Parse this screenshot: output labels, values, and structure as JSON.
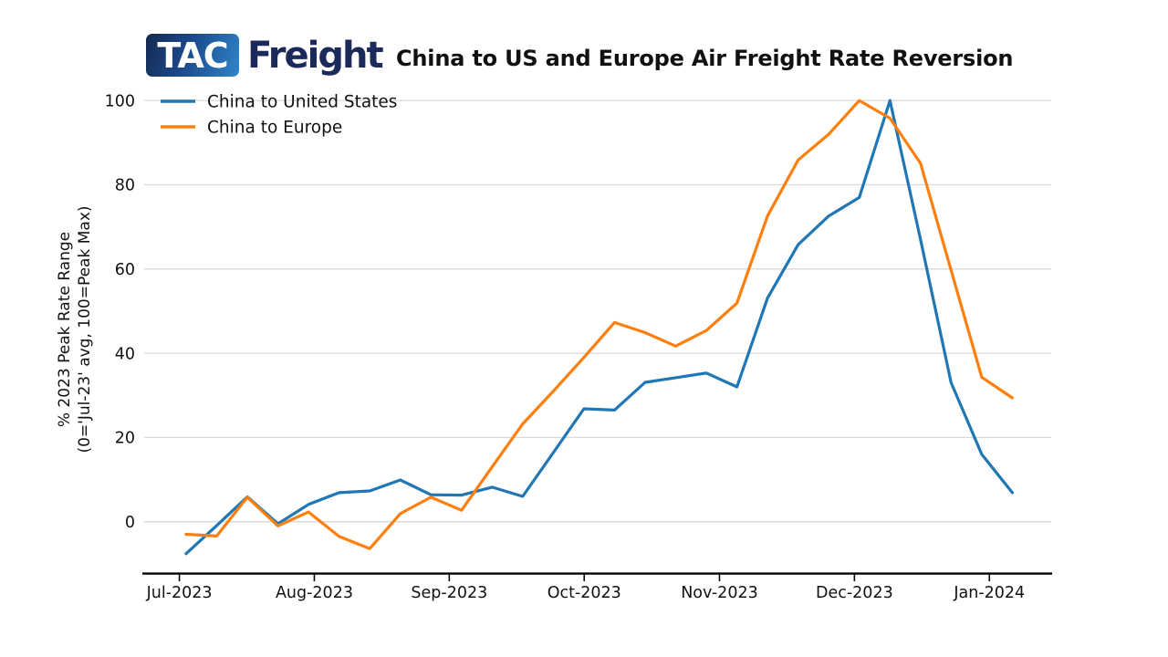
{
  "logo": {
    "tac": "TAC",
    "freight": "Freight"
  },
  "title": "China to US and Europe Air Freight Rate Reversion",
  "chart_data": {
    "type": "line",
    "title": "China to US and Europe Air Freight Rate Reversion",
    "ylabel_line1": "% 2023 Peak Rate Range",
    "ylabel_line2": "(0='Jul-23' avg, 100=Peak Max)",
    "xlabel": "",
    "x_description": "weekly observations, index 0 = first week shown (early Jul-2023), 28 points through early Jan-2024",
    "x_weeks": [
      0,
      1,
      2,
      3,
      4,
      5,
      6,
      7,
      8,
      9,
      10,
      11,
      12,
      13,
      14,
      15,
      16,
      17,
      18,
      19,
      20,
      21,
      22,
      23,
      24,
      25,
      26,
      27
    ],
    "x_tick_labels": [
      "Jul-2023",
      "Aug-2023",
      "Sep-2023",
      "Oct-2023",
      "Nov-2023",
      "Dec-2023",
      "Jan-2024"
    ],
    "x_tick_weeks": [
      -0.22,
      4.19,
      8.6,
      13.01,
      17.43,
      21.84,
      26.25
    ],
    "y_ticks": [
      0,
      20,
      40,
      60,
      80,
      100
    ],
    "xlim_weeks": [
      -1.37,
      28.27
    ],
    "ylim": [
      -12.2,
      103.3
    ],
    "grid": "horizontal",
    "legend_position": "upper-left",
    "background_color": "#ffffff",
    "gridline_color": "#d9d9d9",
    "axis_color": "#000000",
    "series": [
      {
        "name": "China to United States",
        "color": "#1f77b4",
        "values": [
          -7.6,
          -0.9,
          5.9,
          -0.5,
          4.1,
          6.9,
          7.3,
          9.9,
          6.4,
          6.3,
          8.2,
          6.0,
          16.4,
          26.8,
          26.5,
          33.1,
          34.2,
          35.3,
          32.0,
          53.1,
          65.8,
          72.6,
          77.0,
          100.0,
          67.0,
          33.0,
          16.0,
          6.9
        ]
      },
      {
        "name": "China to Europe",
        "color": "#ff7f0e",
        "values": [
          -3.0,
          -3.4,
          5.8,
          -1.0,
          2.3,
          -3.5,
          -6.4,
          1.9,
          5.8,
          2.7,
          13.0,
          23.2,
          31.0,
          39.0,
          47.3,
          44.9,
          41.7,
          45.4,
          51.9,
          72.6,
          85.9,
          92.0,
          100.0,
          95.8,
          85.1,
          59.7,
          34.3,
          29.4
        ]
      }
    ]
  }
}
